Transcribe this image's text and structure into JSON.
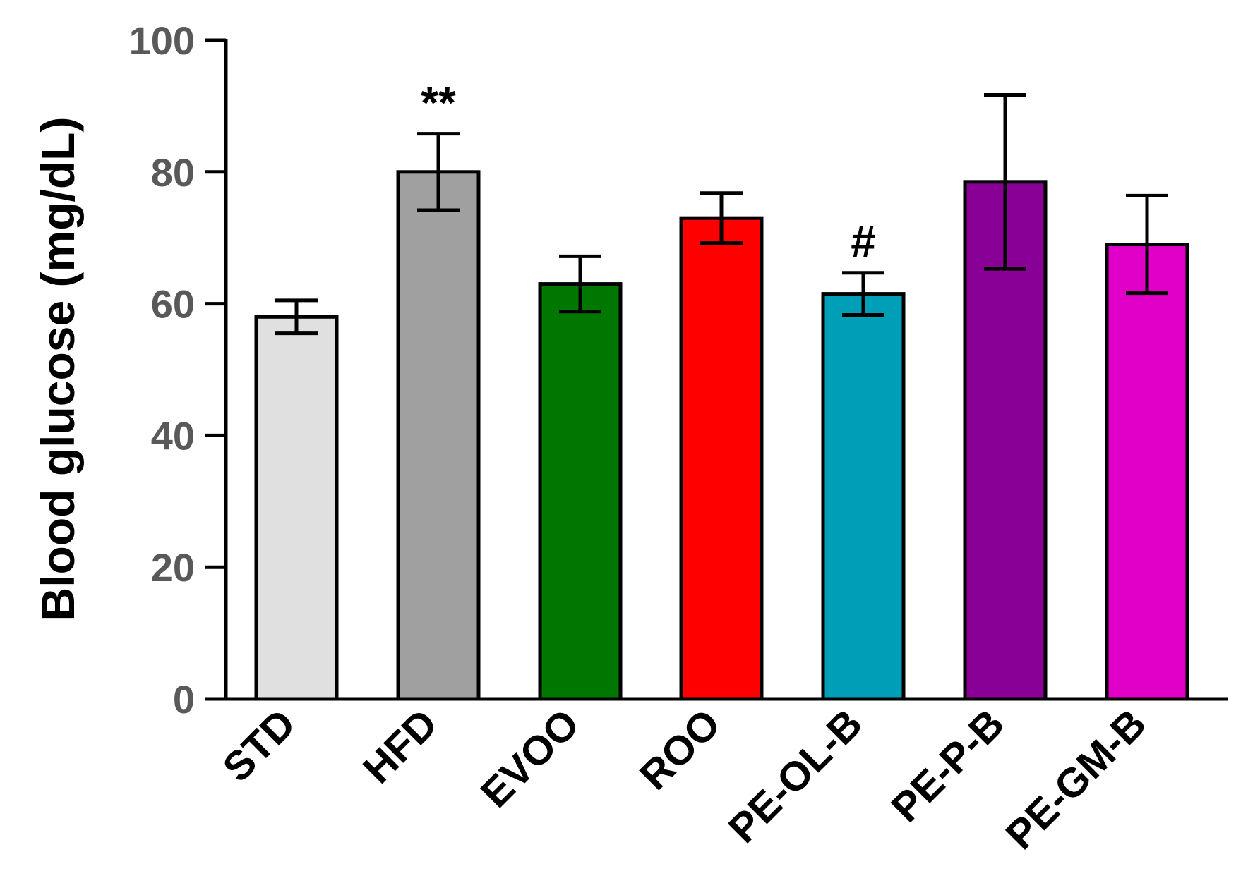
{
  "chart_data": {
    "type": "bar",
    "title": "",
    "xlabel": "",
    "ylabel": "Blood glucose (mg/dL)",
    "ylim": [
      0,
      100
    ],
    "yticks": [
      "0",
      "20",
      "40",
      "60",
      "80",
      "100"
    ],
    "grid": false,
    "categories": [
      "STD",
      "HFD",
      "EVOO",
      "ROO",
      "PE-OL-B",
      "PE-P-B",
      "PE-GM-B"
    ],
    "values": [
      58,
      80,
      63,
      73,
      61.5,
      78.5,
      69
    ],
    "errors": [
      2.5,
      5.8,
      4.2,
      3.8,
      3.2,
      13.2,
      7.4
    ],
    "colors": [
      "#e0e0e0",
      "#a0a0a0",
      "#007800",
      "#ff0000",
      "#009fb8",
      "#890096",
      "#e000c8"
    ],
    "annotations": [
      "",
      "**",
      "",
      "",
      "#",
      "",
      ""
    ]
  }
}
